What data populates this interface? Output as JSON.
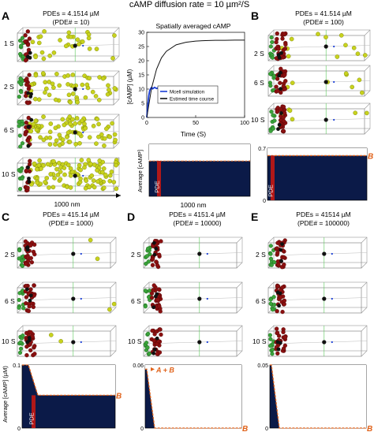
{
  "figure_title": "cAMP diffusion rate = 10 µm²/S",
  "panels": {
    "A": {
      "letter": "A",
      "conc": "PDEs = 4.1514 µM",
      "count": "(PDE# = 10)",
      "rows": [
        "1 S",
        "2 S",
        "6 S",
        "10 S"
      ],
      "scale": "1000 nm"
    },
    "B": {
      "letter": "B",
      "conc": "PDEs = 41.514 µM",
      "count": "(PDE# = 100)",
      "rows": [
        "2 S",
        "6 S",
        "10 S"
      ]
    },
    "C": {
      "letter": "C",
      "conc": "PDEs = 415.14 µM",
      "count": "(PDE# = 1000)",
      "rows": [
        "2 S",
        "6 S",
        "10 S"
      ]
    },
    "D": {
      "letter": "D",
      "conc": "PDEs = 4151.4 µM",
      "count": "(PDE# = 10000)",
      "rows": [
        "2 S",
        "6 S",
        "10 S"
      ]
    },
    "E": {
      "letter": "E",
      "conc": "PDEs = 41514 µM",
      "count": "(PDE# = 100000)",
      "rows": [
        "2 S",
        "6 S",
        "10 S"
      ]
    }
  },
  "colors": {
    "green": "#3aa33a",
    "yellow": "#c8d21e",
    "pde_red": "#8b1010",
    "black": "#111111",
    "navy": "#0b1a48",
    "orange": "#e0621a",
    "blue": "#1b3fd6"
  },
  "labels": {
    "pde": "PDE",
    "b_label": "B",
    "ab_label": "A + B"
  },
  "chart_data": [
    {
      "type": "line",
      "title": "Spatially averaged cAMP",
      "xlabel": "Time (S)",
      "ylabel": "[cAMP] (µM)",
      "xlim": [
        0,
        100
      ],
      "ylim": [
        0,
        30
      ],
      "xticks": [
        "0",
        "50",
        "100"
      ],
      "yticks": [
        "0",
        "5",
        "10",
        "15",
        "20",
        "25",
        "30"
      ],
      "legend_position": "bottom-left",
      "series": [
        {
          "name": "Mcell simulation",
          "color": "#1b3fd6",
          "x": [
            0,
            1,
            2,
            3,
            4,
            5,
            6,
            8,
            10,
            12,
            14
          ],
          "y": [
            0,
            4,
            7.5,
            9.5,
            10.2,
            10.6,
            10.1,
            10.6,
            10.2,
            10.5,
            10.3
          ]
        },
        {
          "name": "Estimed time course",
          "color": "#111111",
          "x": [
            0,
            5,
            10,
            15,
            20,
            30,
            40,
            50,
            60,
            70,
            80,
            90,
            100
          ],
          "y": [
            0,
            10.5,
            17,
            21,
            23.3,
            25.6,
            26.5,
            26.9,
            27.1,
            27.2,
            27.2,
            27.25,
            27.25
          ]
        }
      ]
    },
    {
      "type": "area",
      "id": "A-profile",
      "ylabel": "Average [cAMP]",
      "xlabel": "1000 nm",
      "level": 0.68,
      "ylim": [
        0,
        1
      ]
    },
    {
      "type": "area",
      "id": "B-profile",
      "yticks": [
        "0",
        "0.7"
      ],
      "ylim": [
        0,
        0.7
      ],
      "level": 0.6
    },
    {
      "type": "area",
      "id": "C-profile",
      "yticks": [
        "0",
        "0.1"
      ],
      "ylabel": "Average [cAMP] (µM)",
      "ylim": [
        0,
        0.1
      ],
      "start_level": 0.1,
      "level": 0.052
    },
    {
      "type": "area",
      "id": "D-profile",
      "yticks": [
        "0",
        "0.06"
      ],
      "ylim": [
        0,
        0.06
      ],
      "start_level": 0.056,
      "level": 0.0
    },
    {
      "type": "area",
      "id": "E-profile",
      "yticks": [
        "0",
        "0.05"
      ],
      "ylim": [
        0,
        0.05
      ],
      "start_level": 0.05,
      "level": 0.0
    }
  ]
}
